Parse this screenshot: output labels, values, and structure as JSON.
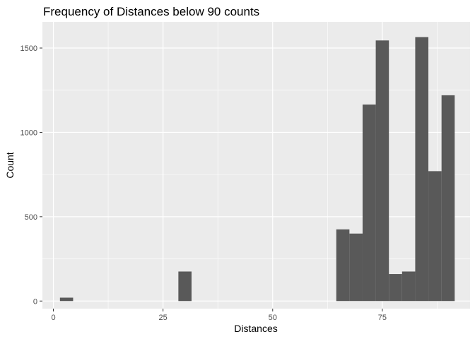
{
  "chart_data": {
    "type": "bar",
    "title": "Frequency of Distances below 90 counts",
    "xlabel": "Distances",
    "ylabel": "Count",
    "xlim": [
      -2.5,
      95
    ],
    "ylim": [
      -45,
      1655
    ],
    "bin_width": 3,
    "bar_color": "#595959",
    "panel_color": "#ebebeb",
    "grid_color": "#ffffff",
    "x_ticks": [
      0,
      25,
      50,
      75
    ],
    "y_ticks": [
      0,
      500,
      1000,
      1500
    ],
    "bins": [
      {
        "x": 3,
        "count": 20
      },
      {
        "x": 30,
        "count": 175
      },
      {
        "x": 66,
        "count": 425
      },
      {
        "x": 69,
        "count": 400
      },
      {
        "x": 72,
        "count": 1165
      },
      {
        "x": 75,
        "count": 1545
      },
      {
        "x": 78,
        "count": 160
      },
      {
        "x": 81,
        "count": 175
      },
      {
        "x": 84,
        "count": 1565
      },
      {
        "x": 87,
        "count": 770
      },
      {
        "x": 90,
        "count": 1220
      }
    ]
  }
}
